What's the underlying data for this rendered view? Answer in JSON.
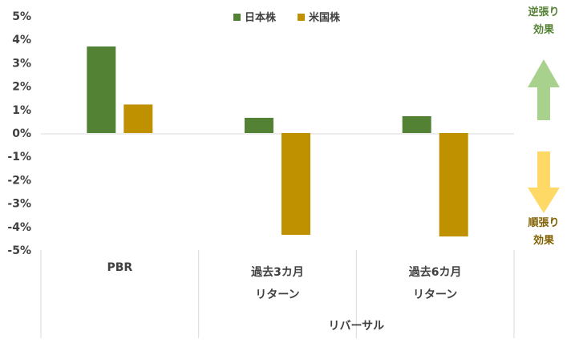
{
  "chart_data": {
    "type": "bar",
    "categories": [
      "PBR",
      "過去3カ月\nリターン",
      "過去6カ月\nリターン"
    ],
    "group_label": "リバーサル",
    "series": [
      {
        "name": "日本株",
        "color": "#548235",
        "values": [
          3.7,
          0.65,
          0.72
        ]
      },
      {
        "name": "米国株",
        "color": "#BF9000",
        "values": [
          1.22,
          -4.35,
          -4.42
        ]
      }
    ],
    "ylim": [
      -5,
      5
    ],
    "yticks": [
      5,
      4,
      3,
      2,
      1,
      0,
      -1,
      -2,
      -3,
      -4,
      -5
    ],
    "y_tick_format": "percent",
    "xlabel": "",
    "ylabel": "",
    "title": "",
    "legend_position": "top-center",
    "grid": false
  },
  "side_annotations": [
    {
      "text": "逆張り\n効果",
      "color": "#548235",
      "arrow": "up",
      "arrow_color": "#A9D18E"
    },
    {
      "text": "順張り\n効果",
      "color": "#806000",
      "arrow": "down",
      "arrow_color": "#FFD966"
    }
  ]
}
